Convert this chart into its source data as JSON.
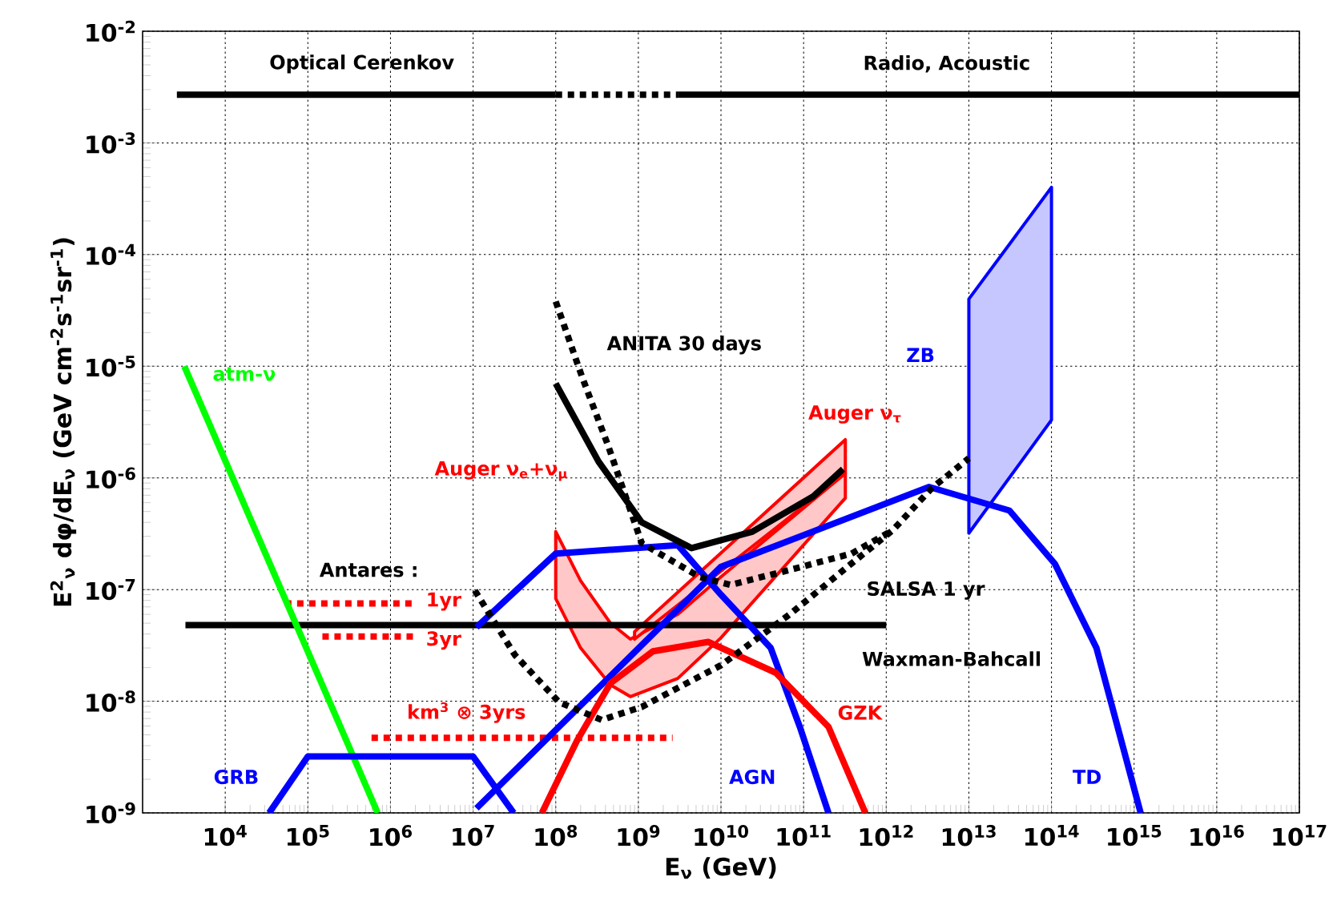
{
  "chart_data": {
    "type": "line",
    "xlabel": "E$_{ν}$  (GeV)",
    "ylabel": "E$^{2}$$_{ν}$ dφ/dE$_{ν}$ (GeV cm$^{-2}$s$^{-1}$sr$^{-1}$)",
    "log": "xy",
    "grid": true,
    "xlim": [
      1000.0,
      1e+17
    ],
    "ylim": [
      1e-09,
      0.01
    ],
    "xticks": [
      {
        "value": 10000.0,
        "label": "10$^{4}$"
      },
      {
        "value": 100000.0,
        "label": "10$^{5}$"
      },
      {
        "value": 1000000.0,
        "label": "10$^{6}$"
      },
      {
        "value": 10000000.0,
        "label": "10$^{7}$"
      },
      {
        "value": 100000000.0,
        "label": "10$^{8}$"
      },
      {
        "value": 1000000000.0,
        "label": "10$^{9}$"
      },
      {
        "value": 10000000000.0,
        "label": "10$^{10}$"
      },
      {
        "value": 100000000000.0,
        "label": "10$^{11}$"
      },
      {
        "value": 1000000000000.0,
        "label": "10$^{12}$"
      },
      {
        "value": 10000000000000.0,
        "label": "10$^{13}$"
      },
      {
        "value": 100000000000000.0,
        "label": "10$^{14}$"
      },
      {
        "value": 1000000000000000.0,
        "label": "10$^{15}$"
      },
      {
        "value": 1e+16,
        "label": "10$^{16}$"
      },
      {
        "value": 1e+17,
        "label": "10$^{17}$"
      }
    ],
    "yticks": [
      {
        "value": 1e-09,
        "label": "10$^{-9}$"
      },
      {
        "value": 1e-08,
        "label": "10$^{-8}$"
      },
      {
        "value": 1e-07,
        "label": "10$^{-7}$"
      },
      {
        "value": 1e-06,
        "label": "10$^{-6}$"
      },
      {
        "value": 1e-05,
        "label": "10$^{-5}$"
      },
      {
        "value": 0.0001,
        "label": "10$^{-4}$"
      },
      {
        "value": 0.001,
        "label": "10$^{-3}$"
      },
      {
        "value": 0.01,
        "label": "10$^{-2}$"
      }
    ],
    "series": [
      {
        "name": "Optical Cerenkov",
        "color": "#000000",
        "line_style": "solid",
        "x": [
          2600.0,
          100000000.0
        ],
        "values": [
          0.0027,
          0.0027
        ]
      },
      {
        "color": "#000000",
        "line_style": "dotted",
        "x": [
          100000000.0,
          3000000000.0
        ],
        "values": [
          0.0027,
          0.0027
        ]
      },
      {
        "name": "Radio, Acoustic",
        "color": "#000000",
        "line_style": "solid",
        "x": [
          3000000000.0,
          1e+17
        ],
        "values": [
          0.0027,
          0.0027
        ]
      },
      {
        "name": "1yr",
        "color": "#ff0000",
        "line_style": "dotted",
        "x": [
          53000.0,
          2000000.0
        ],
        "values": [
          7.5e-08,
          7.5e-08
        ]
      },
      {
        "name": "3yr",
        "color": "#ff0000",
        "line_style": "dotted",
        "x": [
          150000.0,
          2000000.0
        ],
        "values": [
          3.8e-08,
          3.8e-08
        ]
      },
      {
        "name": "km$^{3}$ ⊗ 3yrs",
        "color": "#ff0000",
        "line_style": "dotted",
        "x": [
          590000.0,
          2600000000.0
        ],
        "values": [
          4.7e-09,
          4.7e-09
        ]
      },
      {
        "name": "Auger ν$_{e}$+ν$_{μ}$",
        "color": "#ff0000",
        "x": [
          100000000.0,
          200000000.0,
          460000000.0,
          800000000.0,
          3000000000.0,
          10000000000.0,
          320000000000.0
        ],
        "values": [
          null,
          null,
          null,
          null,
          null,
          null,
          null
        ],
        "lower": [
          8.3e-08,
          3e-08,
          1.4e-08,
          1.1e-08,
          1.6e-08,
          3.7e-08,
          6.6e-07
        ],
        "upper": [
          3.3e-07,
          1.2e-07,
          5e-08,
          3.6e-08,
          6e-08,
          1.3e-07,
          1.1e-06
        ]
      },
      {
        "name": "Auger ν$_{τ}$",
        "color": "#ff0000",
        "x": [
          900000000.0,
          320000000000.0
        ],
        "values": [
          null,
          null
        ],
        "lower": [
          3.6e-08,
          1.1e-06
        ],
        "upper": [
          4.2e-08,
          2.2e-06
        ]
      },
      {
        "name": "ZB",
        "color": "#0000ff",
        "x": [
          10000000000000.0,
          100000000000000.0
        ],
        "values": [
          null,
          null
        ],
        "lower": [
          3.2e-07,
          3.3e-06
        ],
        "upper": [
          4e-05,
          0.0004
        ]
      },
      {
        "name": "Waxman-Bahcall",
        "color": "#000000",
        "line_style": "solid",
        "x": [
          3300.0,
          1000000000000.0
        ],
        "values": [
          4.8e-08,
          4.8e-08
        ]
      },
      {
        "name": "atm-ν",
        "color": "#00ff00",
        "line_style": "solid",
        "x": [
          3200.0,
          700000.0
        ],
        "values": [
          1e-05,
          1e-09
        ]
      },
      {
        "name": "GRB",
        "color": "#0000ff",
        "line_style": "solid",
        "x": [
          34000.0,
          100000.0,
          10000000.0,
          31000000.0
        ],
        "values": [
          1e-09,
          3.2e-09,
          3.2e-09,
          1e-09
        ]
      },
      {
        "name": "AGN",
        "color": "#0000ff",
        "line_style": "solid",
        "x": [
          11000000.0,
          100000000.0,
          3000000000.0,
          10000000000.0,
          40000000000.0,
          90000000000.0,
          200000000000.0
        ],
        "values": [
          4.6e-08,
          2.1e-07,
          2.5e-07,
          9e-08,
          3e-08,
          5.9e-09,
          1e-09
        ]
      },
      {
        "name": "TD",
        "color": "#0000ff",
        "line_style": "solid",
        "x": [
          11000000.0,
          10000000000.0,
          3300000000000.0,
          31000000000000.0,
          110000000000000.0,
          350000000000000.0,
          1200000000000000.0
        ],
        "values": [
          1.1e-09,
          1.6e-07,
          8.3e-07,
          5.1e-07,
          1.7e-07,
          3e-08,
          1e-09
        ]
      },
      {
        "name": "GZK",
        "color": "#ff0000",
        "line_style": "solid",
        "x": [
          68000000.0,
          180000000.0,
          460000000.0,
          1500000000.0,
          7000000000.0,
          46000000000.0,
          200000000000.0,
          560000000000.0
        ],
        "values": [
          1e-09,
          4.4e-09,
          1.45e-08,
          2.8e-08,
          3.4e-08,
          1.8e-08,
          5.9e-09,
          1e-09
        ]
      },
      {
        "color": "#000000",
        "line_style": "solid",
        "x": [
          100000000.0,
          330000000.0,
          1100000000.0,
          4400000000.0,
          24000000000.0,
          130000000000.0,
          300000000000.0
        ],
        "values": [
          7e-06,
          1.4e-06,
          4e-07,
          2.35e-07,
          3.3e-07,
          6.8e-07,
          1.2e-06
        ]
      },
      {
        "name": "ANITA 30 days",
        "color": "#000000",
        "line_style": "dotted",
        "x": [
          100000000.0,
          210000000.0,
          430000000.0,
          1100000000.0,
          5500000000.0,
          13000000000.0,
          68000000000.0,
          380000000000.0,
          1200000000000.0
        ],
        "values": [
          3.8e-05,
          7.9e-06,
          1.95e-06,
          2.6e-07,
          1.3e-07,
          1.1e-07,
          1.5e-07,
          2.1e-07,
          3.4e-07
        ]
      },
      {
        "name": "SALSA 1 yr",
        "color": "#000000",
        "line_style": "dotted",
        "x": [
          10500000.0,
          32000000.0,
          110000000.0,
          360000000.0,
          1100000000.0,
          10000000000.0,
          68000000000.0,
          340000000000.0,
          1200000000000.0,
          3500000000000.0,
          10000000000000.0
        ],
        "values": [
          9.8e-08,
          2.6e-08,
          9.8e-09,
          6.8e-09,
          8.9e-09,
          2.1e-08,
          6e-08,
          1.6e-07,
          3.4e-07,
          8e-07,
          1.5e-06
        ]
      }
    ],
    "annotations": [
      "Antares :"
    ]
  }
}
